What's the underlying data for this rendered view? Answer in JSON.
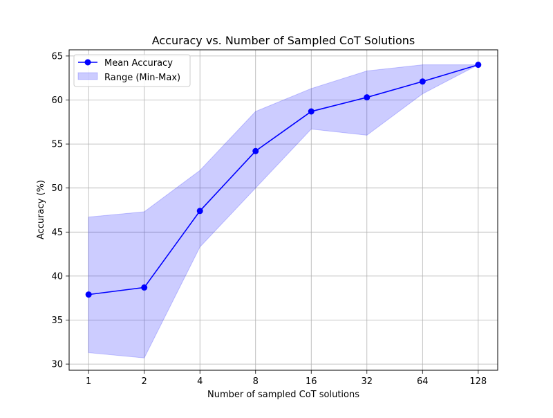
{
  "chart_data": {
    "type": "line",
    "title": "Accuracy vs. Number of Sampled CoT Solutions",
    "xlabel": "Number of sampled CoT solutions",
    "ylabel": "Accuracy (%)",
    "x_scale": "log2",
    "categories": [
      "1",
      "2",
      "4",
      "8",
      "16",
      "32",
      "64",
      "128"
    ],
    "x": [
      1,
      2,
      4,
      8,
      16,
      32,
      64,
      128
    ],
    "ylim": [
      29.3,
      65.7
    ],
    "yticks": [
      30,
      35,
      40,
      45,
      50,
      55,
      60,
      65
    ],
    "grid": true,
    "legend_position": "top-left",
    "series": [
      {
        "name": "Mean Accuracy",
        "kind": "line-markers",
        "color": "#0000ff",
        "values": [
          37.9,
          38.7,
          47.4,
          54.2,
          58.7,
          60.3,
          62.1,
          64.0
        ]
      },
      {
        "name": "Range (Min-Max)",
        "kind": "band",
        "color": "#0000ff",
        "fill_opacity": 0.2,
        "min": [
          31.3,
          30.7,
          43.3,
          50.0,
          56.7,
          56.0,
          60.7,
          64.0
        ],
        "max": [
          46.7,
          47.3,
          52.0,
          58.7,
          61.3,
          63.3,
          64.0,
          64.0
        ]
      }
    ]
  }
}
